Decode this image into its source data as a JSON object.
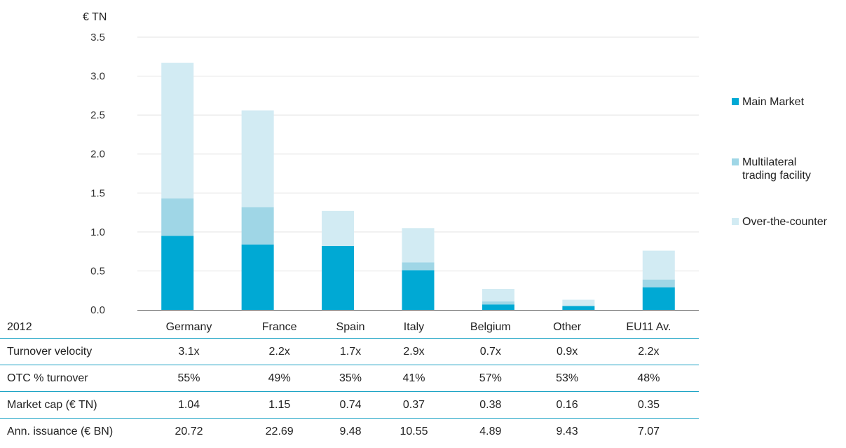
{
  "chart_data": {
    "type": "bar",
    "stacked": true,
    "unit_label": "€ TN",
    "categories": [
      "Germany",
      "France",
      "Spain",
      "Italy",
      "Belgium",
      "Other",
      "EU11 Av."
    ],
    "series": [
      {
        "name": "Main Market",
        "color": "#00a9d4",
        "values": [
          0.95,
          0.84,
          0.82,
          0.51,
          0.07,
          0.05,
          0.29
        ]
      },
      {
        "name": "Multilateral trading facility",
        "color": "#9fd6e6",
        "values": [
          0.48,
          0.48,
          0.0,
          0.1,
          0.04,
          0.0,
          0.1
        ]
      },
      {
        "name": "Over-the-counter",
        "color": "#d2ebf3",
        "values": [
          1.74,
          1.24,
          0.45,
          0.44,
          0.16,
          0.08,
          0.37
        ]
      }
    ],
    "ylim": [
      0,
      3.5
    ],
    "yticks": [
      "0.0",
      "0.5",
      "1.0",
      "1.5",
      "2.0",
      "2.5",
      "3.0",
      "3.5"
    ],
    "grid": true,
    "legend_position": "right"
  },
  "legend": [
    {
      "lines": [
        "Main Market"
      ],
      "color": "#00a9d4"
    },
    {
      "lines": [
        "Multilateral",
        "trading facility"
      ],
      "color": "#9fd6e6"
    },
    {
      "lines": [
        "Over-the-counter"
      ],
      "color": "#d2ebf3"
    }
  ],
  "table": {
    "header": "2012",
    "rows": [
      {
        "label": "Turnover velocity",
        "values": [
          "3.1x",
          "2.2x",
          "1.7x",
          "2.9x",
          "0.7x",
          "0.9x",
          "2.2x"
        ]
      },
      {
        "label": "OTC % turnover",
        "values": [
          "55%",
          "49%",
          "35%",
          "41%",
          "57%",
          "53%",
          "48%"
        ]
      },
      {
        "label": "Market cap (€ TN)",
        "values": [
          "1.04",
          "1.15",
          "0.74",
          "0.37",
          "0.38",
          "0.16",
          "0.35"
        ]
      },
      {
        "label": "Ann. issuance (€ BN)",
        "values": [
          "20.72",
          "22.69",
          "9.48",
          "10.55",
          "4.89",
          "9.43",
          "7.07"
        ]
      }
    ]
  }
}
